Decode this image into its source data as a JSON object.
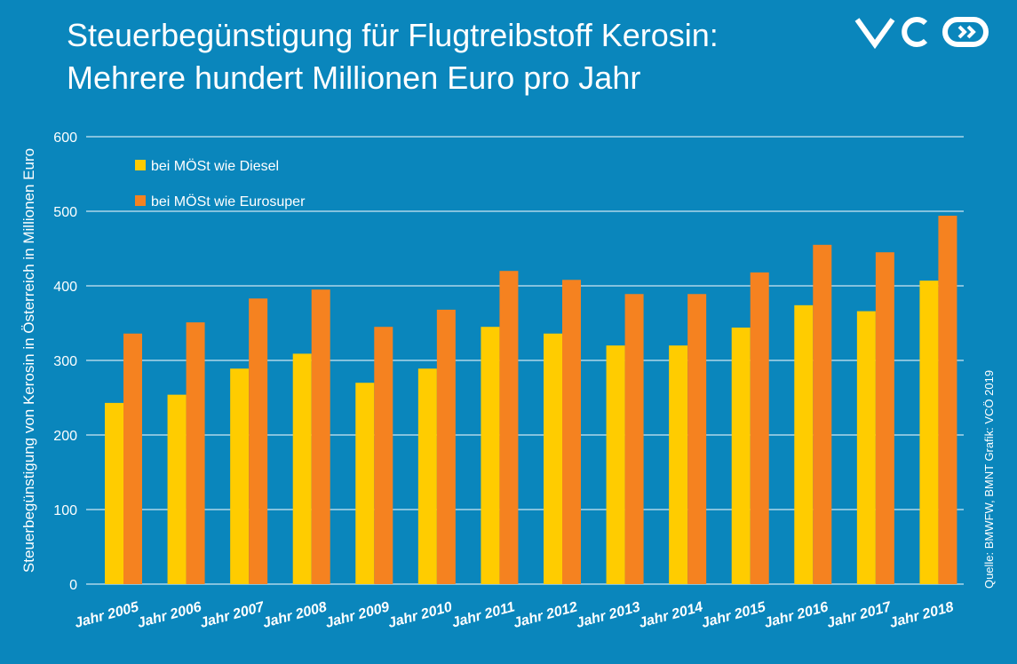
{
  "chart_data": {
    "type": "bar",
    "title": "Steuerbegünstigung für Flugtreibstoff Kerosin:",
    "subtitle": "Mehrere hundert Millionen Euro pro Jahr",
    "y_label": "Steuerbegünstigung von Kerosin in Österreich in Millionen Euro",
    "source": "Quelle: BMWFW, BMNT Grafik: VCÖ 2019",
    "categories": [
      "Jahr 2005",
      "Jahr 2006",
      "Jahr 2007",
      "Jahr 2008",
      "Jahr 2009",
      "Jahr 2010",
      "Jahr 2011",
      "Jahr 2012",
      "Jahr 2013",
      "Jahr 2014",
      "Jahr 2015",
      "Jahr 2016",
      "Jahr 2017",
      "Jahr 2018"
    ],
    "series": [
      {
        "name": "bei MÖSt wie Diesel",
        "color": "#ffcc00",
        "values": [
          243,
          254,
          289,
          309,
          270,
          289,
          345,
          336,
          320,
          320,
          344,
          374,
          366,
          407
        ]
      },
      {
        "name": "bei MÖSt wie Eurosuper",
        "color": "#f58220",
        "values": [
          336,
          351,
          383,
          395,
          345,
          368,
          420,
          408,
          389,
          389,
          418,
          455,
          445,
          494
        ]
      }
    ],
    "ylim": [
      0,
      600
    ],
    "yticks": [
      0,
      100,
      200,
      300,
      400,
      500,
      600
    ],
    "grid": true,
    "legend": "top-left"
  }
}
